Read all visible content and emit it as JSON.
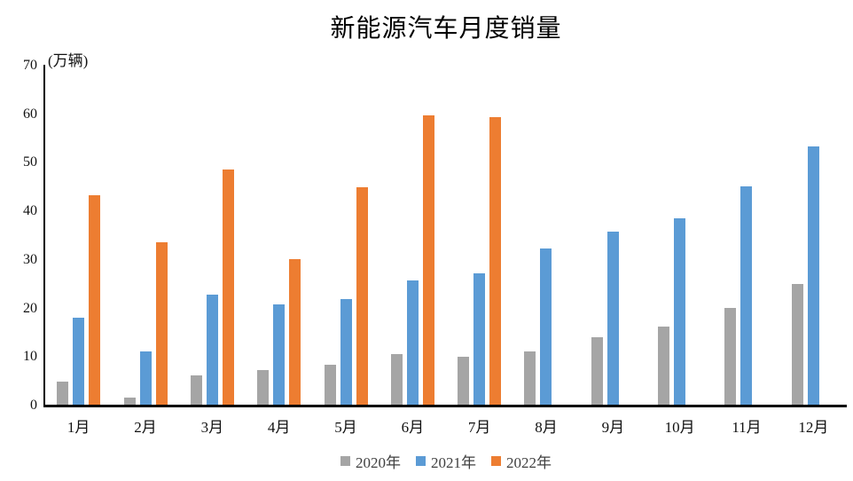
{
  "chart_data": {
    "type": "bar",
    "title": "新能源汽车月度销量",
    "unit_label": "(万辆)",
    "categories": [
      "1月",
      "2月",
      "3月",
      "4月",
      "5月",
      "6月",
      "7月",
      "8月",
      "9月",
      "10月",
      "11月",
      "12月"
    ],
    "series": [
      {
        "name": "2020年",
        "color": "#A5A5A5",
        "values": [
          4.8,
          1.4,
          6.1,
          7.2,
          8.2,
          10.4,
          9.8,
          10.9,
          13.8,
          16.0,
          20.0,
          24.8
        ]
      },
      {
        "name": "2021年",
        "color": "#5B9BD5",
        "values": [
          17.9,
          11.0,
          22.6,
          20.6,
          21.7,
          25.6,
          27.1,
          32.1,
          35.7,
          38.3,
          45.0,
          53.1
        ]
      },
      {
        "name": "2022年",
        "color": "#ED7D31",
        "values": [
          43.1,
          33.4,
          48.4,
          29.9,
          44.7,
          59.6,
          59.3,
          null,
          null,
          null,
          null,
          null
        ]
      }
    ],
    "ylim": [
      0,
      70
    ],
    "ytick_step": 10,
    "ytick_labels": [
      "0",
      "10",
      "20",
      "30",
      "40",
      "50",
      "60",
      "70"
    ],
    "xlabel": "",
    "ylabel": "",
    "grid": false,
    "legend_position": "bottom",
    "axis_color": "#000000",
    "background_color": "#ffffff",
    "text_color": "#111111"
  },
  "layout_note": ""
}
